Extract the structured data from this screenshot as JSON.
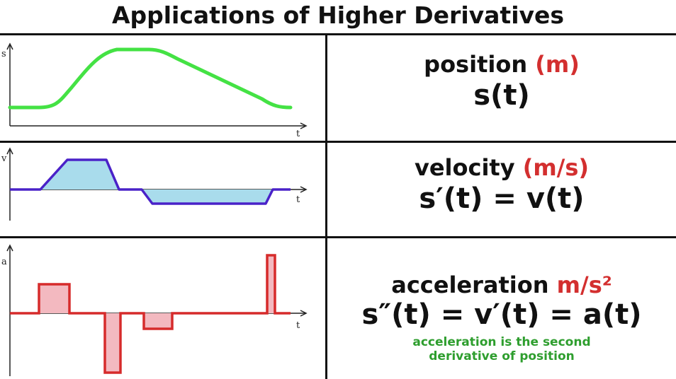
{
  "title": "Applications of Higher Derivatives",
  "rows": [
    {
      "quantity": "position",
      "unit": "(m)",
      "equation": "s(t)",
      "y_axis": "s",
      "x_axis": "t",
      "color": "#44e244"
    },
    {
      "quantity": "velocity",
      "unit": "(m/s)",
      "equation": "s′(t) = v(t)",
      "y_axis": "v",
      "x_axis": "t",
      "color": "#4a22c8",
      "fill": "#a9dcec"
    },
    {
      "quantity": "acceleration",
      "unit": "m/s²",
      "equation": "s″(t) = v′(t) = a(t)",
      "y_axis": "a",
      "x_axis": "t",
      "color": "#d62b2b",
      "fill": "#f3b9c0",
      "note_line1": "acceleration is the second",
      "note_line2": "derivative of position"
    }
  ]
}
